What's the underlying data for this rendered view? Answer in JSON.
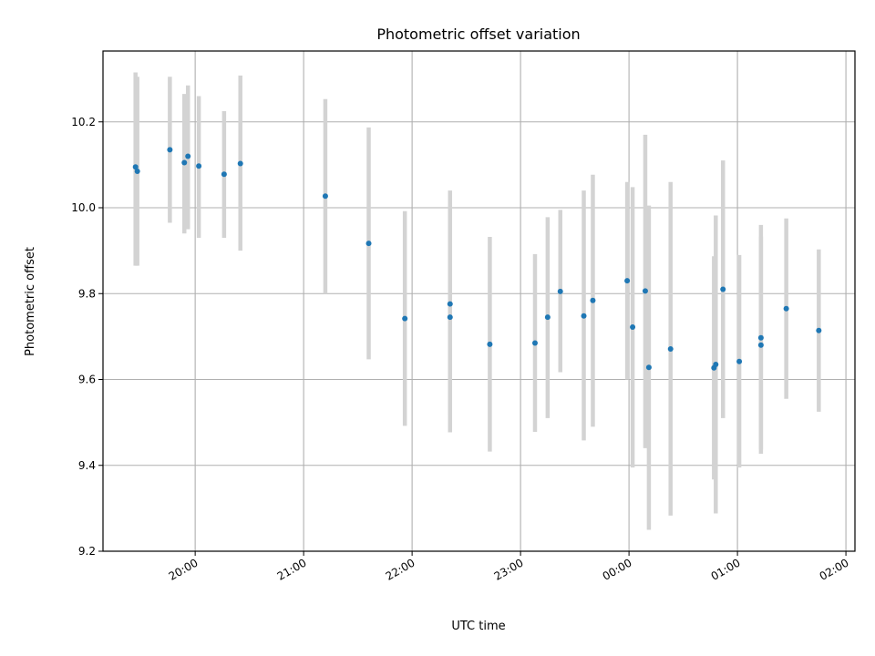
{
  "chart_data": {
    "type": "scatter",
    "title": "Photometric offset variation",
    "xlabel": "UTC time",
    "ylabel": "Photometric offset",
    "x_axis_kind": "time",
    "xlim": [
      "2024-01-01T19:09",
      "2024-01-02T02:05"
    ],
    "ylim": [
      9.2,
      10.365
    ],
    "grid": true,
    "x_ticks": [
      {
        "t": "2024-01-01T20:00",
        "label": "20:00"
      },
      {
        "t": "2024-01-01T21:00",
        "label": "21:00"
      },
      {
        "t": "2024-01-01T22:00",
        "label": "22:00"
      },
      {
        "t": "2024-01-01T23:00",
        "label": "23:00"
      },
      {
        "t": "2024-01-02T00:00",
        "label": "00:00"
      },
      {
        "t": "2024-01-02T01:00",
        "label": "01:00"
      },
      {
        "t": "2024-01-02T02:00",
        "label": "02:00"
      }
    ],
    "y_ticks": [
      {
        "v": 9.2,
        "label": "9.2"
      },
      {
        "v": 9.4,
        "label": "9.4"
      },
      {
        "v": 9.6,
        "label": "9.6"
      },
      {
        "v": 9.8,
        "label": "9.8"
      },
      {
        "v": 10.0,
        "label": "10.0"
      },
      {
        "v": 10.2,
        "label": "10.2"
      }
    ],
    "colors": {
      "marker": "#1f77b4",
      "errorbar": "#d3d3d3",
      "grid": "#b0b0b0"
    },
    "points": [
      {
        "t": "2024-01-01T19:27",
        "y": 10.095,
        "lo": 9.865,
        "hi": 10.315
      },
      {
        "t": "2024-01-01T19:28",
        "y": 10.085,
        "lo": 9.865,
        "hi": 10.305
      },
      {
        "t": "2024-01-01T19:46",
        "y": 10.135,
        "lo": 9.965,
        "hi": 10.305
      },
      {
        "t": "2024-01-01T19:54",
        "y": 10.105,
        "lo": 9.94,
        "hi": 10.265
      },
      {
        "t": "2024-01-01T19:56",
        "y": 10.12,
        "lo": 9.95,
        "hi": 10.285
      },
      {
        "t": "2024-01-01T20:02",
        "y": 10.097,
        "lo": 9.93,
        "hi": 10.26
      },
      {
        "t": "2024-01-01T20:16",
        "y": 10.078,
        "lo": 9.93,
        "hi": 10.225
      },
      {
        "t": "2024-01-01T20:25",
        "y": 10.103,
        "lo": 9.9,
        "hi": 10.308
      },
      {
        "t": "2024-01-01T21:12",
        "y": 10.027,
        "lo": 9.8,
        "hi": 10.253
      },
      {
        "t": "2024-01-01T21:36",
        "y": 9.917,
        "lo": 9.647,
        "hi": 10.187
      },
      {
        "t": "2024-01-01T21:56",
        "y": 9.742,
        "lo": 9.492,
        "hi": 9.992
      },
      {
        "t": "2024-01-01T22:21",
        "y": 9.776,
        "lo": 9.516,
        "hi": 10.04
      },
      {
        "t": "2024-01-01T22:21",
        "y": 9.745,
        "lo": 9.477,
        "hi": 10.0
      },
      {
        "t": "2024-01-01T22:43",
        "y": 9.682,
        "lo": 9.432,
        "hi": 9.932
      },
      {
        "t": "2024-01-01T23:08",
        "y": 9.685,
        "lo": 9.478,
        "hi": 9.892
      },
      {
        "t": "2024-01-01T23:15",
        "y": 9.745,
        "lo": 9.51,
        "hi": 9.978
      },
      {
        "t": "2024-01-01T23:22",
        "y": 9.805,
        "lo": 9.617,
        "hi": 9.995
      },
      {
        "t": "2024-01-01T23:35",
        "y": 9.748,
        "lo": 9.458,
        "hi": 10.04
      },
      {
        "t": "2024-01-01T23:40",
        "y": 9.784,
        "lo": 9.49,
        "hi": 10.077
      },
      {
        "t": "2024-01-01T23:59",
        "y": 9.83,
        "lo": 9.6,
        "hi": 10.06
      },
      {
        "t": "2024-01-02T00:02",
        "y": 9.722,
        "lo": 9.395,
        "hi": 10.048
      },
      {
        "t": "2024-01-02T00:09",
        "y": 9.806,
        "lo": 9.44,
        "hi": 10.17
      },
      {
        "t": "2024-01-02T00:11",
        "y": 9.628,
        "lo": 9.25,
        "hi": 10.005
      },
      {
        "t": "2024-01-02T00:23",
        "y": 9.671,
        "lo": 9.283,
        "hi": 10.06
      },
      {
        "t": "2024-01-02T00:47",
        "y": 9.627,
        "lo": 9.367,
        "hi": 9.887
      },
      {
        "t": "2024-01-02T00:48",
        "y": 9.635,
        "lo": 9.288,
        "hi": 9.982
      },
      {
        "t": "2024-01-02T00:52",
        "y": 9.81,
        "lo": 9.51,
        "hi": 10.11
      },
      {
        "t": "2024-01-02T01:01",
        "y": 9.642,
        "lo": 9.395,
        "hi": 9.89
      },
      {
        "t": "2024-01-02T01:13",
        "y": 9.697,
        "lo": 9.437,
        "hi": 9.96
      },
      {
        "t": "2024-01-02T01:13",
        "y": 9.68,
        "lo": 9.427,
        "hi": 9.933
      },
      {
        "t": "2024-01-02T01:27",
        "y": 9.765,
        "lo": 9.555,
        "hi": 9.975
      },
      {
        "t": "2024-01-02T01:45",
        "y": 9.714,
        "lo": 9.525,
        "hi": 9.903
      }
    ]
  }
}
